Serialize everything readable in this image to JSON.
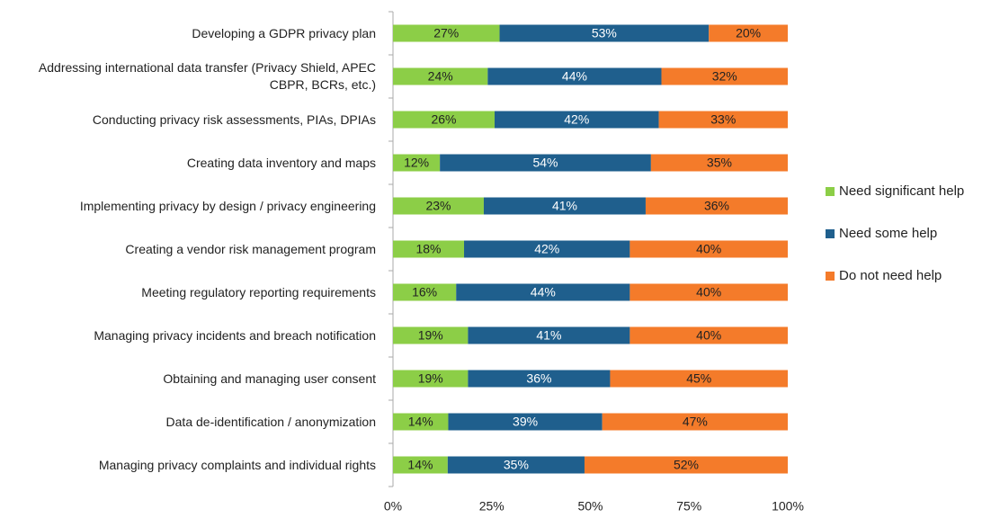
{
  "chart_data": {
    "type": "bar",
    "orientation": "horizontal",
    "stacking": "percent",
    "categories": [
      "Developing a GDPR privacy plan",
      "Addressing international data transfer (Privacy Shield, APEC CBPR, BCRs, etc.)",
      "Conducting privacy risk assessments, PIAs, DPIAs",
      "Creating  data inventory and maps",
      "Implementing privacy by design / privacy engineering",
      "Creating a vendor risk management program",
      "Meeting regulatory reporting requirements",
      "Managing privacy incidents and breach notification",
      "Obtaining and managing user consent",
      "Data de-identification / anonymization",
      "Managing privacy complaints and individual rights"
    ],
    "series": [
      {
        "name": "Need significant help",
        "color": "#8cce47",
        "values": [
          27,
          24,
          26,
          12,
          23,
          18,
          16,
          19,
          19,
          14,
          14
        ],
        "value_labels": [
          "27%",
          "24%",
          "26%",
          "12%",
          "23%",
          "18%",
          "16%",
          "19%",
          "19%",
          "14%",
          "14%"
        ]
      },
      {
        "name": "Need some help",
        "color": "#1f5f8d",
        "values": [
          53,
          44,
          42,
          54,
          41,
          42,
          44,
          41,
          36,
          39,
          35
        ],
        "value_labels": [
          "53%",
          "44%",
          "42%",
          "54%",
          "41%",
          "42%",
          "44%",
          "41%",
          "36%",
          "39%",
          "35%"
        ]
      },
      {
        "name": "Do not need help",
        "color": "#f47b2a",
        "values": [
          20,
          32,
          33,
          35,
          36,
          40,
          40,
          40,
          45,
          47,
          52
        ],
        "value_labels": [
          "20%",
          "32%",
          "33%",
          "35%",
          "36%",
          "40%",
          "40%",
          "40%",
          "45%",
          "47%",
          "52%"
        ]
      }
    ],
    "xlim": [
      0,
      100
    ],
    "xticks": [
      {
        "value": 0,
        "label": "0%"
      },
      {
        "value": 25,
        "label": "25%"
      },
      {
        "value": 50,
        "label": "50%"
      },
      {
        "value": 75,
        "label": "75%"
      },
      {
        "value": 100,
        "label": "100%"
      }
    ],
    "legend": "right"
  }
}
